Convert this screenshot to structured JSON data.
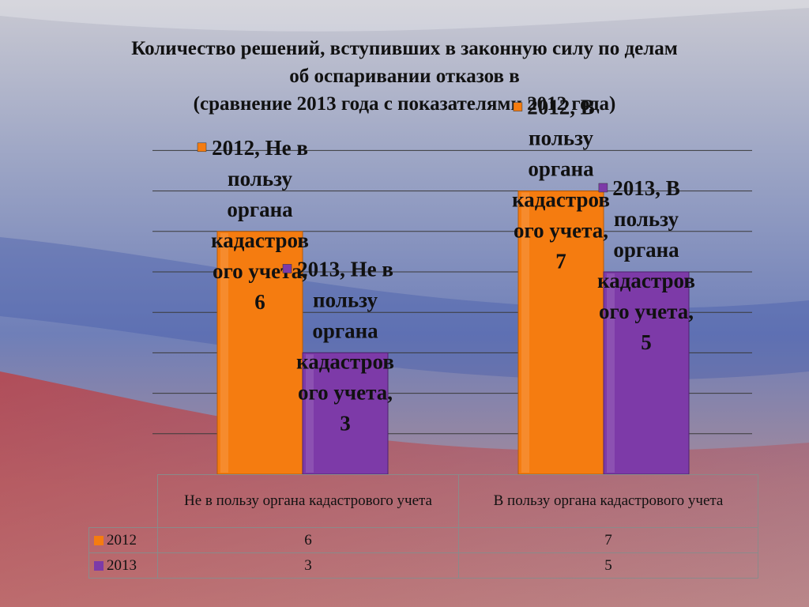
{
  "title_lines": [
    "Количество решений, вступивших в законную силу по делам",
    "об оспаривании отказов в",
    "(сравнение 2013 года с показателями 2012 года)"
  ],
  "colors": {
    "2012": "#f57c10",
    "2013": "#7d3aa8"
  },
  "chart_data": {
    "type": "bar",
    "categories": [
      "Не в пользу органа кадастрового учета",
      "В пользу органа кадастрового учета"
    ],
    "series": [
      {
        "name": "2012",
        "values": [
          6,
          7
        ],
        "color": "#f57c10"
      },
      {
        "name": "2013",
        "values": [
          3,
          5
        ],
        "color": "#7d3aa8"
      }
    ],
    "ylim": [
      0,
      7.5
    ],
    "grid": true,
    "data_labels": [
      [
        "2012, Не в",
        "пользу",
        "органа",
        "кадастров",
        "ого учета,",
        "6"
      ],
      [
        "2013, Не в",
        "пользу",
        "органа",
        "кадастров",
        "ого учета,",
        "3"
      ],
      [
        "2012, В",
        "пользу",
        "органа",
        "кадастров",
        "ого учета,",
        "7"
      ],
      [
        "2013, В",
        "пользу",
        "органа",
        "кадастров",
        "ого учета,",
        "5"
      ]
    ]
  },
  "table": {
    "headers": [
      "",
      "Не в пользу органа кадастрового учета",
      "В пользу органа кадастрового учета"
    ],
    "rows": [
      {
        "label": "2012",
        "values": [
          "6",
          "7"
        ]
      },
      {
        "label": "2013",
        "values": [
          "3",
          "5"
        ]
      }
    ]
  }
}
